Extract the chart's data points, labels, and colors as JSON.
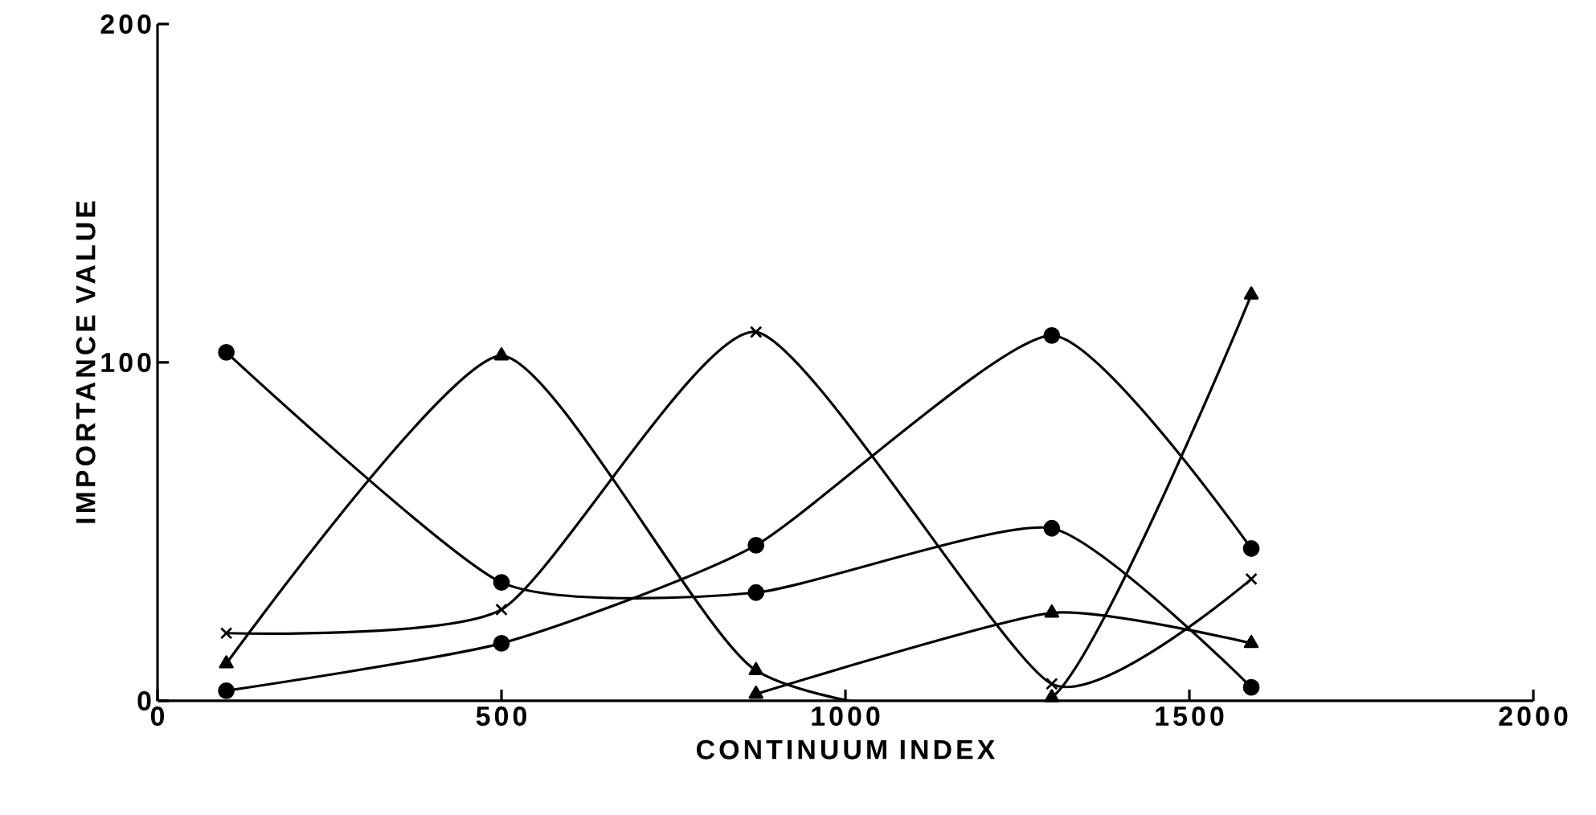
{
  "chart_data": {
    "type": "line",
    "xlabel": "CONTINUUM   INDEX",
    "ylabel": "IMPORTANCE   VALUE",
    "x": [
      100,
      500,
      870,
      1300,
      1590
    ],
    "series": [
      {
        "color": "#000000",
        "marker": "circle",
        "values": [
          103,
          35,
          32,
          51,
          4
        ]
      },
      {
        "color": "#000000",
        "marker": "triangle",
        "values": [
          11,
          102,
          9,
          1,
          120
        ]
      },
      {
        "color": "#000000",
        "marker": "triangle",
        "values": [
          null,
          null,
          2,
          26,
          17
        ]
      },
      {
        "color": "#000000",
        "marker": "cross",
        "values": [
          20,
          27,
          109,
          5,
          36
        ]
      },
      {
        "color": "#000000",
        "marker": "circle",
        "values": [
          3,
          17,
          46,
          108,
          45
        ]
      }
    ],
    "xlim": [
      0,
      2000
    ],
    "xticks": [
      0,
      500,
      1000,
      1500,
      2000
    ],
    "ylim": [
      0,
      200
    ],
    "yticks": [
      0,
      100,
      200
    ],
    "line_style": "solid"
  }
}
